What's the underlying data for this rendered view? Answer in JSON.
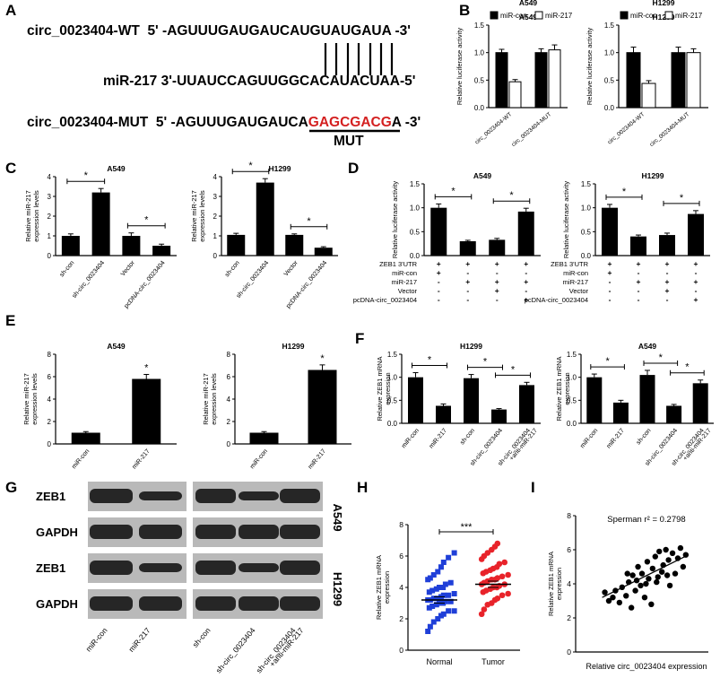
{
  "panel_letters": {
    "A": "A",
    "B": "B",
    "C": "C",
    "D": "D",
    "E": "E",
    "F": "F",
    "G": "G",
    "H": "H",
    "I": "I"
  },
  "panelA": {
    "wt_name": "circ_0023404-WT",
    "wt_seq_prefix": "5' -AGUUUGAUGAUCAU",
    "wt_seq_bind": "GUAUGA",
    "wt_seq_suffix": "UA -3'",
    "mir_name": "miR-217",
    "mir_seq": "3'-UUAUCCAGUUGGCACAUACUAA-5'",
    "mut_name": "circ_0023404-MUT",
    "mut_seq_prefix": "5' -AGUUUGAUGAUCA",
    "mut_seq_mut": "GAGCGACG",
    "mut_seq_suffix": "A -3'",
    "mut_label": "MUT",
    "mut_color": "#d42020"
  },
  "chart_data": [
    {
      "id": "B1",
      "type": "bar",
      "title": "A549",
      "ylabel": "Relative luciferase activity",
      "ylim": [
        0,
        1.5
      ],
      "yticks": [
        "0.0",
        "0.5",
        "1.0",
        "1.5"
      ],
      "categories": [
        "circ_0023404-WT",
        "circ_0023404-MUT"
      ],
      "legend": [
        "miR-con",
        "miR-217"
      ],
      "series": [
        {
          "name": "miR-con",
          "values": [
            1.0,
            1.0
          ],
          "err": [
            0.06,
            0.07
          ]
        },
        {
          "name": "miR-217",
          "values": [
            0.47,
            1.05
          ],
          "err": [
            0.04,
            0.09
          ]
        }
      ]
    },
    {
      "id": "B2",
      "type": "bar",
      "title": "H1299",
      "ylabel": "Relative luciferase activity",
      "ylim": [
        0,
        1.5
      ],
      "yticks": [
        "0.0",
        "0.5",
        "1.0",
        "1.5"
      ],
      "categories": [
        "circ_0023404-WT",
        "circ_0023404-MUT"
      ],
      "legend": [
        "miR-con",
        "miR-217"
      ],
      "series": [
        {
          "name": "miR-con",
          "values": [
            1.0,
            1.0
          ],
          "err": [
            0.1,
            0.1
          ]
        },
        {
          "name": "miR-217",
          "values": [
            0.44,
            1.0
          ],
          "err": [
            0.05,
            0.07
          ]
        }
      ]
    },
    {
      "id": "C1",
      "type": "bar",
      "title": "A549",
      "ylabel": "Relative miR-217 expression levels",
      "ylim": [
        0,
        4
      ],
      "yticks": [
        "0",
        "1",
        "2",
        "3",
        "4"
      ],
      "categories": [
        "sh-con",
        "sh-circ_0023404",
        "Vector",
        "pcDNA-circ_0023404"
      ],
      "values": [
        1.0,
        3.2,
        1.0,
        0.5
      ],
      "err": [
        0.1,
        0.2,
        0.15,
        0.08
      ],
      "sig": [
        {
          "from": 0,
          "to": 1,
          "label": "*"
        },
        {
          "from": 2,
          "to": 3,
          "label": "*"
        }
      ]
    },
    {
      "id": "C2",
      "type": "bar",
      "title": "H1299",
      "ylabel": "Relative miR-217 expression levels",
      "ylim": [
        0,
        4
      ],
      "yticks": [
        "0",
        "1",
        "2",
        "3",
        "4"
      ],
      "categories": [
        "sh-con",
        "sh-circ_0023404",
        "Vector",
        "pcDNA-circ_0023404"
      ],
      "values": [
        1.05,
        3.7,
        1.05,
        0.4
      ],
      "err": [
        0.08,
        0.2,
        0.05,
        0.05
      ],
      "sig": [
        {
          "from": 0,
          "to": 1,
          "label": "*"
        },
        {
          "from": 2,
          "to": 3,
          "label": "*"
        }
      ]
    },
    {
      "id": "D1",
      "type": "bar",
      "title": "A549",
      "ylabel": "Relative luciferase activity",
      "ylim": [
        0,
        1.5
      ],
      "yticks": [
        "0.0",
        "0.5",
        "1.0",
        "1.5"
      ],
      "categories": [
        "1",
        "2",
        "3",
        "4"
      ],
      "values": [
        1.0,
        0.3,
        0.33,
        0.92
      ],
      "err": [
        0.08,
        0.02,
        0.03,
        0.07
      ],
      "sig": [
        {
          "from": 0,
          "to": 1,
          "label": "*"
        },
        {
          "from": 2,
          "to": 3,
          "label": "*"
        }
      ],
      "conditions": {
        "labels": [
          "ZEB1 3'UTR",
          "miR-con",
          "miR-217",
          "Vector",
          "pcDNA-circ_0023404"
        ],
        "rows": [
          [
            "+",
            "+",
            "+",
            "+"
          ],
          [
            "+",
            "-",
            "-",
            "-"
          ],
          [
            "-",
            "+",
            "+",
            "+"
          ],
          [
            "-",
            "-",
            "+",
            "-"
          ],
          [
            "-",
            "-",
            "-",
            "+"
          ]
        ]
      }
    },
    {
      "id": "D2",
      "type": "bar",
      "title": "H1299",
      "ylabel": "Relative luciferase activity",
      "ylim": [
        0,
        1.5
      ],
      "yticks": [
        "0.0",
        "0.5",
        "1.0",
        "1.5"
      ],
      "categories": [
        "1",
        "2",
        "3",
        "4"
      ],
      "values": [
        1.0,
        0.4,
        0.43,
        0.87
      ],
      "err": [
        0.07,
        0.03,
        0.04,
        0.07
      ],
      "sig": [
        {
          "from": 0,
          "to": 1,
          "label": "*"
        },
        {
          "from": 2,
          "to": 3,
          "label": "*"
        }
      ],
      "conditions": {
        "labels": [
          "ZEB1 3'UTR",
          "miR-con",
          "miR-217",
          "Vector",
          "pcDNA-circ_0023404"
        ],
        "rows": [
          [
            "+",
            "+",
            "+",
            "+"
          ],
          [
            "+",
            "-",
            "-",
            "-"
          ],
          [
            "-",
            "+",
            "+",
            "+"
          ],
          [
            "-",
            "-",
            "+",
            "-"
          ],
          [
            "-",
            "-",
            "-",
            "+"
          ]
        ]
      }
    },
    {
      "id": "E1",
      "type": "bar",
      "title": "A549",
      "ylabel": "Relative miR-217 expression levels",
      "ylim": [
        0,
        8
      ],
      "yticks": [
        "0",
        "2",
        "4",
        "6",
        "8"
      ],
      "categories": [
        "miR-con",
        "miR-217"
      ],
      "values": [
        1.0,
        5.8
      ],
      "err": [
        0.1,
        0.4
      ],
      "sig": [
        {
          "over": 1,
          "label": "*"
        }
      ]
    },
    {
      "id": "E2",
      "type": "bar",
      "title": "H1299",
      "ylabel": "Relative miR-217 expression levels",
      "ylim": [
        0,
        8
      ],
      "yticks": [
        "0",
        "2",
        "4",
        "6",
        "8"
      ],
      "categories": [
        "miR-con",
        "miR-217"
      ],
      "values": [
        1.0,
        6.6
      ],
      "err": [
        0.1,
        0.45
      ],
      "sig": [
        {
          "over": 1,
          "label": "*"
        }
      ]
    },
    {
      "id": "F1",
      "type": "bar",
      "title": "H1299",
      "ylabel": "Relative ZEB1 mRNA expression",
      "ylim": [
        0,
        1.5
      ],
      "yticks": [
        "0.0",
        "0.5",
        "1.0",
        "1.5"
      ],
      "categories": [
        "miR-con",
        "miR-217",
        "sh-con",
        "sh-circ_0023404",
        "sh-circ_0023404 +anti-miR-217"
      ],
      "values": [
        1.0,
        0.38,
        0.98,
        0.3,
        0.83
      ],
      "err": [
        0.1,
        0.04,
        0.08,
        0.02,
        0.06
      ],
      "sig": [
        {
          "from": 0,
          "to": 1,
          "label": "*"
        },
        {
          "from": 2,
          "to": 3,
          "label": "*"
        },
        {
          "from": 3,
          "to": 4,
          "label": "*"
        }
      ]
    },
    {
      "id": "F2",
      "type": "bar",
      "title": "A549",
      "ylabel": "Relative ZEB1 mRNA expression",
      "ylim": [
        0,
        1.5
      ],
      "yticks": [
        "0.0",
        "0.5",
        "1.0",
        "1.5"
      ],
      "categories": [
        "miR-con",
        "miR-217",
        "sh-con",
        "sh-circ_0023404",
        "sh-circ_0023404 +anti-miR-217"
      ],
      "values": [
        1.0,
        0.45,
        1.05,
        0.38,
        0.87
      ],
      "err": [
        0.07,
        0.05,
        0.1,
        0.03,
        0.07
      ],
      "sig": [
        {
          "from": 0,
          "to": 1,
          "label": "*"
        },
        {
          "from": 2,
          "to": 3,
          "label": "*"
        },
        {
          "from": 3,
          "to": 4,
          "label": "*"
        }
      ]
    },
    {
      "id": "H",
      "type": "scatter",
      "ylabel": "Relative ZEB1 mRNA expression",
      "ylim": [
        0,
        8
      ],
      "yticks": [
        "0",
        "2",
        "4",
        "6",
        "8"
      ],
      "categories": [
        "Normal",
        "Tumor"
      ],
      "series": [
        {
          "name": "Normal",
          "color": "#1f3fd8",
          "mean": 3.2,
          "values": [
            1.2,
            1.5,
            1.8,
            2.0,
            2.2,
            2.3,
            2.5,
            2.5,
            2.7,
            2.8,
            2.9,
            3.0,
            3.0,
            3.1,
            3.1,
            3.2,
            3.2,
            3.3,
            3.3,
            3.4,
            3.5,
            3.5,
            3.6,
            3.7,
            3.8,
            3.9,
            4.0,
            4.0,
            4.2,
            4.3,
            4.5,
            4.6,
            4.8,
            5.0,
            5.3,
            5.6,
            5.9,
            6.2
          ]
        },
        {
          "name": "Tumor",
          "color": "#e8232a",
          "mean": 4.2,
          "values": [
            2.3,
            2.6,
            2.9,
            3.0,
            3.2,
            3.3,
            3.5,
            3.6,
            3.7,
            3.8,
            3.9,
            4.0,
            4.0,
            4.1,
            4.2,
            4.2,
            4.3,
            4.4,
            4.5,
            4.5,
            4.6,
            4.7,
            4.8,
            4.9,
            5.0,
            5.1,
            5.2,
            5.3,
            5.5,
            5.6,
            5.8,
            6.0,
            6.2,
            6.4,
            6.6,
            6.8
          ]
        }
      ],
      "sig": [
        {
          "from": 0,
          "to": 1,
          "label": "***"
        }
      ]
    },
    {
      "id": "I",
      "type": "scatter",
      "annotation": "Sperman r² = 0.2798",
      "xlabel": "Relative circ_0023404 expression",
      "ylabel": "Relative ZEB1 mRNA expression",
      "ylim": [
        0,
        8
      ],
      "yticks": [
        "0",
        "2",
        "4",
        "6",
        "8"
      ],
      "xlim": [
        0,
        10
      ],
      "points": [
        [
          2.2,
          3.5
        ],
        [
          2.5,
          3.0
        ],
        [
          2.8,
          3.2
        ],
        [
          3.0,
          3.6
        ],
        [
          3.3,
          2.9
        ],
        [
          3.5,
          3.8
        ],
        [
          3.8,
          3.3
        ],
        [
          4.0,
          4.1
        ],
        [
          4.2,
          2.6
        ],
        [
          4.3,
          4.5
        ],
        [
          4.5,
          3.6
        ],
        [
          4.7,
          5.0
        ],
        [
          4.9,
          3.9
        ],
        [
          5.0,
          4.6
        ],
        [
          5.2,
          3.2
        ],
        [
          5.4,
          5.3
        ],
        [
          5.5,
          4.3
        ],
        [
          5.7,
          2.8
        ],
        [
          5.8,
          4.9
        ],
        [
          6.0,
          5.6
        ],
        [
          6.1,
          4.1
        ],
        [
          6.3,
          5.9
        ],
        [
          6.5,
          4.7
        ],
        [
          6.6,
          5.1
        ],
        [
          6.8,
          6.0
        ],
        [
          7.0,
          5.4
        ],
        [
          7.1,
          3.9
        ],
        [
          7.3,
          5.8
        ],
        [
          7.5,
          4.6
        ],
        [
          7.7,
          5.5
        ],
        [
          7.9,
          6.1
        ],
        [
          8.1,
          5.0
        ],
        [
          8.3,
          5.7
        ],
        [
          5.3,
          4.0
        ],
        [
          4.6,
          4.2
        ],
        [
          6.2,
          4.4
        ],
        [
          6.9,
          4.5
        ],
        [
          3.9,
          4.6
        ]
      ],
      "fit": {
        "from": [
          2.0,
          3.2
        ],
        "to": [
          8.5,
          5.7
        ]
      }
    }
  ],
  "panelG": {
    "row_labels": [
      "ZEB1",
      "GAPDH",
      "ZEB1",
      "GAPDH"
    ],
    "cell_labels": [
      "A549",
      "H1299"
    ],
    "lane_labels": [
      "miR-con",
      "miR-217",
      "sh-con",
      "sh-circ_0023404",
      "sh-circ_0023404 +anti-miR-217"
    ]
  }
}
